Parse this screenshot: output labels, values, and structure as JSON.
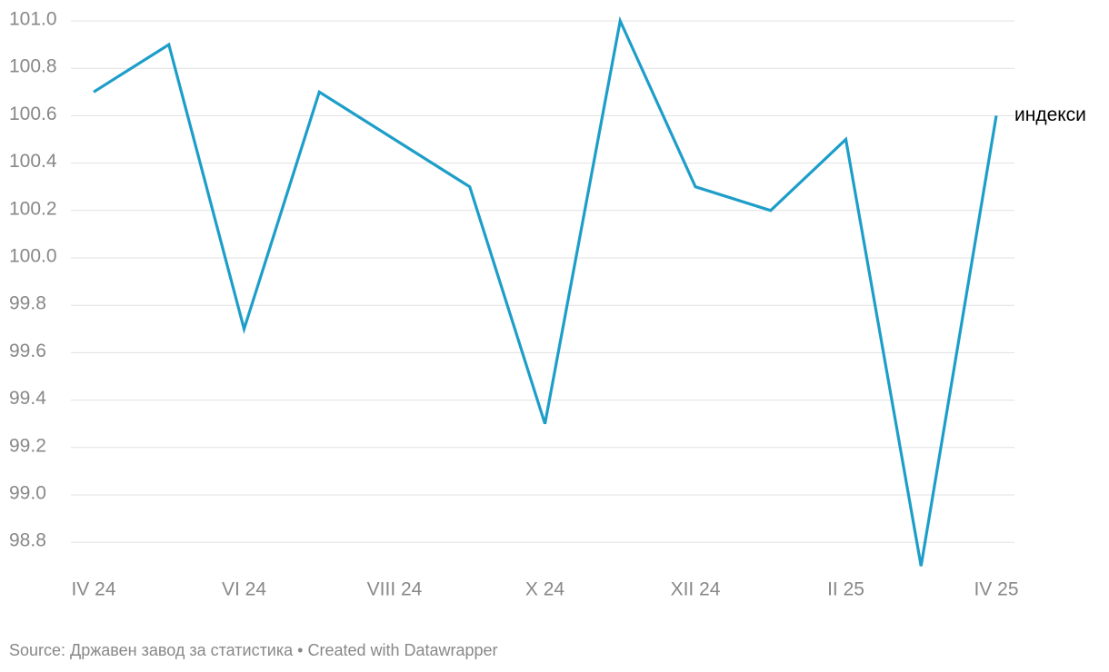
{
  "chart_data": {
    "type": "line",
    "categories": [
      "IV 24",
      null,
      "VI 24",
      null,
      "VIII 24",
      null,
      "X 24",
      null,
      "XII 24",
      null,
      "II 25",
      null,
      "IV 25"
    ],
    "series": [
      {
        "name": "индекси",
        "color": "#1d9ec9",
        "values": [
          100.7,
          100.9,
          99.7,
          100.7,
          100.5,
          100.3,
          99.3,
          101.0,
          100.3,
          100.2,
          100.5,
          98.7,
          100.6
        ]
      }
    ],
    "ylim": [
      98.7,
      101.0
    ],
    "yticks": [
      {
        "value": 98.8,
        "label": "98.8"
      },
      {
        "value": 99.0,
        "label": "99.0"
      },
      99.2,
      99.4,
      99.6,
      99.8,
      {
        "value": 100.0,
        "label": "100.0"
      },
      100.2,
      100.4,
      100.6,
      100.8,
      {
        "value": 101.0,
        "label": "101.0"
      }
    ],
    "grid": true,
    "source": "Source: Државен завод за статистика • Created with Datawrapper"
  }
}
